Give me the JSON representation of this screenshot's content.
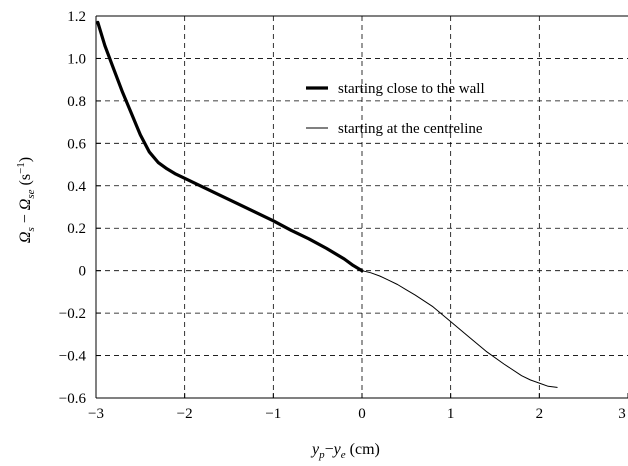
{
  "chart_data": {
    "type": "line",
    "title": "",
    "xlabel": "y_p−y_e (cm)",
    "ylabel": "Ω_s − Ω_se (s⁻¹)",
    "xlim": [
      -3,
      3
    ],
    "ylim": [
      -0.6,
      1.2
    ],
    "grid": true,
    "grid_style": "dashed",
    "legend_position": "upper-right",
    "x_ticks": [
      -3,
      -2,
      -1,
      0,
      1,
      2,
      3
    ],
    "y_ticks": [
      -0.6,
      -0.4,
      -0.2,
      0,
      0.2,
      0.4,
      0.6,
      0.8,
      1.0,
      1.2
    ],
    "x_tick_labels": [
      "−3",
      "−2",
      "−1",
      "0",
      "1",
      "2",
      "3"
    ],
    "y_tick_labels": [
      "−0.6",
      "−0.4",
      "−0.2",
      "0",
      "0.2",
      "0.4",
      "0.6",
      "0.8",
      "1.0",
      "1.2"
    ],
    "series": [
      {
        "name": "starting close to the wall",
        "style": "thick",
        "color": "#000000",
        "x": [
          -2.98,
          -2.9,
          -2.8,
          -2.7,
          -2.6,
          -2.5,
          -2.4,
          -2.3,
          -2.2,
          -2.1,
          -2.0,
          -1.8,
          -1.6,
          -1.4,
          -1.2,
          -1.0,
          -0.8,
          -0.6,
          -0.4,
          -0.2,
          -0.1,
          0.0
        ],
        "y": [
          1.17,
          1.06,
          0.95,
          0.84,
          0.74,
          0.64,
          0.56,
          0.51,
          0.48,
          0.455,
          0.435,
          0.395,
          0.355,
          0.315,
          0.275,
          0.235,
          0.19,
          0.15,
          0.105,
          0.055,
          0.025,
          0.0
        ]
      },
      {
        "name": "starting at the centreline",
        "style": "thin",
        "color": "#000000",
        "x": [
          0.0,
          0.1,
          0.2,
          0.3,
          0.4,
          0.5,
          0.6,
          0.8,
          1.0,
          1.2,
          1.4,
          1.6,
          1.8,
          1.9,
          2.0,
          2.1,
          2.2
        ],
        "y": [
          0.0,
          -0.01,
          -0.025,
          -0.045,
          -0.065,
          -0.09,
          -0.115,
          -0.17,
          -0.24,
          -0.31,
          -0.38,
          -0.44,
          -0.495,
          -0.515,
          -0.53,
          -0.545,
          -0.55
        ]
      }
    ]
  }
}
